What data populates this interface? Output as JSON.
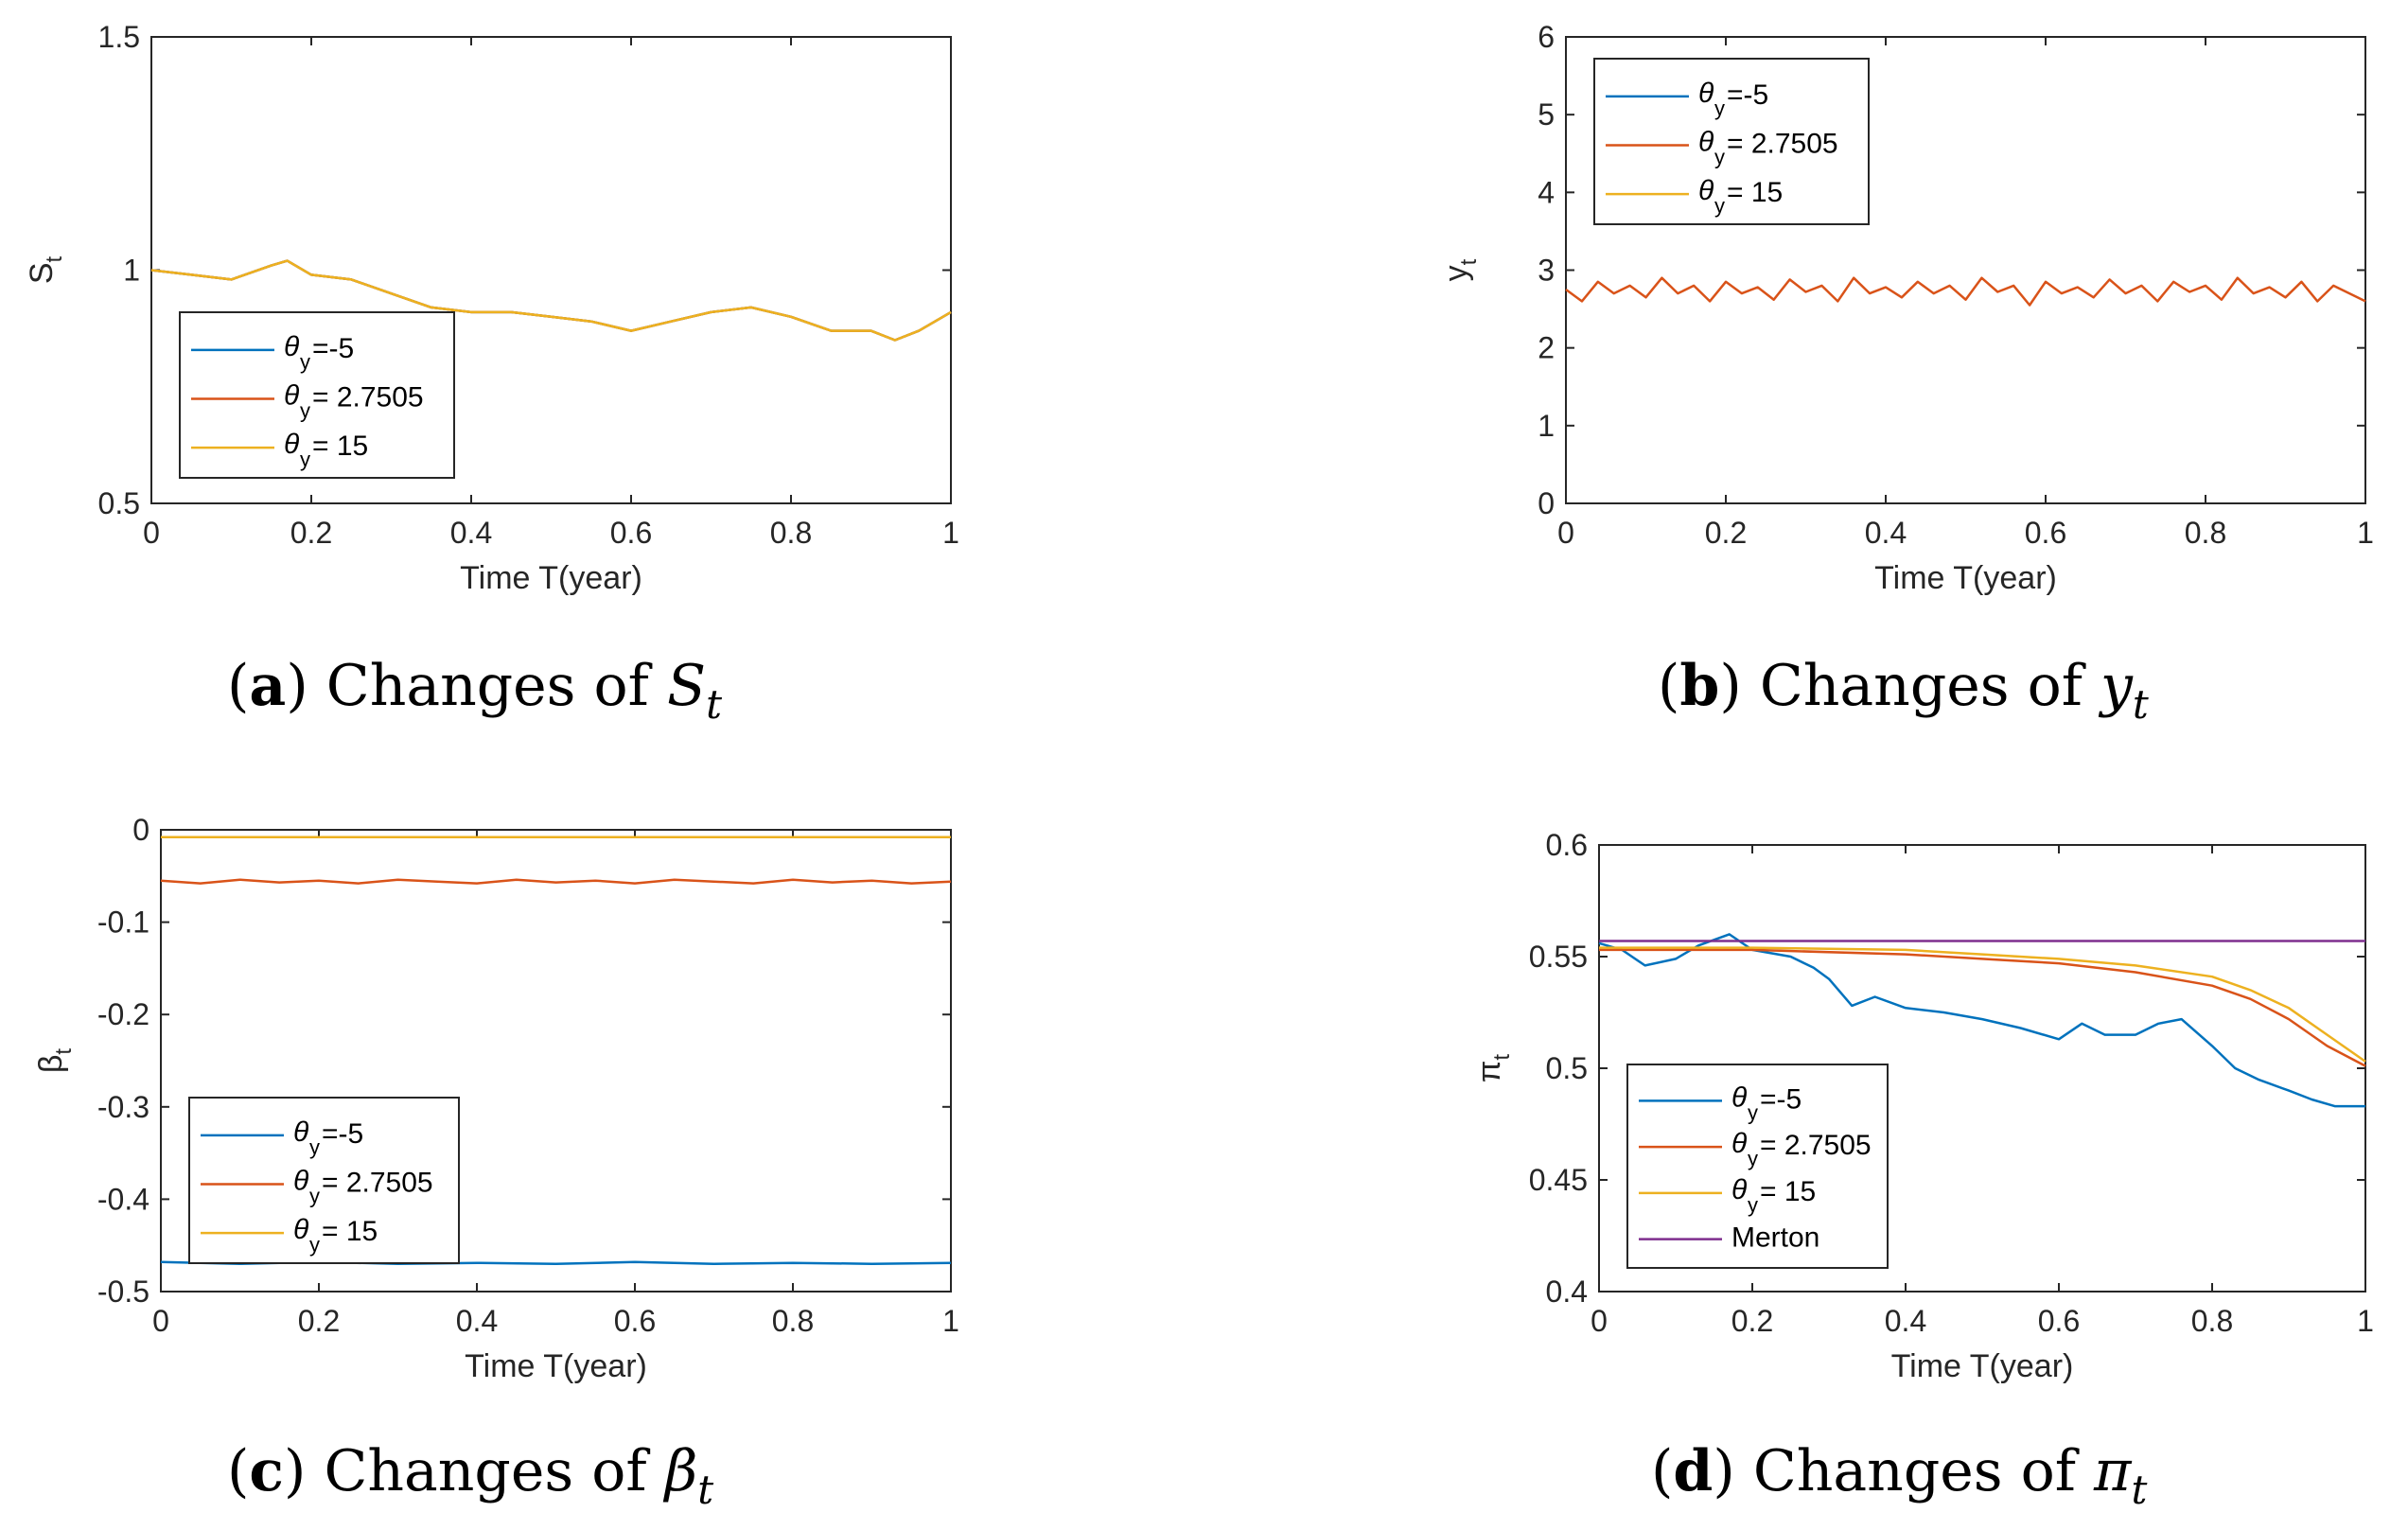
{
  "colors": {
    "blue": "#0072BD",
    "orange": "#D95319",
    "yellow": "#EDB120",
    "purple": "#7E2F8E",
    "axis": "#262626"
  },
  "chart_data": [
    {
      "id": "a",
      "type": "line",
      "xlabel": "Time T(year)",
      "ylabel": "S",
      "ylabel_sub": "t",
      "xlim": [
        0,
        1
      ],
      "ylim": [
        0.5,
        1.5
      ],
      "xticks": [
        "0",
        "0.2",
        "0.4",
        "0.6",
        "0.8",
        "1"
      ],
      "yticks": [
        "0.5",
        "1",
        "1.5"
      ],
      "caption": {
        "letter": "a",
        "text": "Changes of ",
        "symbol": "S",
        "sub": "t"
      },
      "legend": {
        "position": "lower-left",
        "entries": [
          {
            "label": "=-5",
            "color": "#0072BD"
          },
          {
            "label": "= 2.7505",
            "color": "#D95319"
          },
          {
            "label": "= 15",
            "color": "#EDB120"
          }
        ]
      },
      "series": [
        {
          "name": "θy=-5",
          "color": "#0072BD",
          "points": [
            [
              0,
              1.0
            ],
            [
              0.05,
              0.99
            ],
            [
              0.1,
              0.98
            ],
            [
              0.15,
              1.01
            ],
            [
              0.17,
              1.02
            ],
            [
              0.2,
              0.99
            ],
            [
              0.25,
              0.98
            ],
            [
              0.3,
              0.95
            ],
            [
              0.35,
              0.92
            ],
            [
              0.4,
              0.91
            ],
            [
              0.45,
              0.91
            ],
            [
              0.5,
              0.9
            ],
            [
              0.55,
              0.89
            ],
            [
              0.6,
              0.87
            ],
            [
              0.65,
              0.89
            ],
            [
              0.7,
              0.91
            ],
            [
              0.75,
              0.92
            ],
            [
              0.8,
              0.9
            ],
            [
              0.85,
              0.87
            ],
            [
              0.9,
              0.87
            ],
            [
              0.93,
              0.85
            ],
            [
              0.96,
              0.87
            ],
            [
              1.0,
              0.91
            ]
          ]
        },
        {
          "name": "θy=2.7505",
          "color": "#D95319",
          "points": [
            [
              0,
              1.0
            ],
            [
              0.05,
              0.99
            ],
            [
              0.1,
              0.98
            ],
            [
              0.15,
              1.01
            ],
            [
              0.17,
              1.02
            ],
            [
              0.2,
              0.99
            ],
            [
              0.25,
              0.98
            ],
            [
              0.3,
              0.95
            ],
            [
              0.35,
              0.92
            ],
            [
              0.4,
              0.91
            ],
            [
              0.45,
              0.91
            ],
            [
              0.5,
              0.9
            ],
            [
              0.55,
              0.89
            ],
            [
              0.6,
              0.87
            ],
            [
              0.65,
              0.89
            ],
            [
              0.7,
              0.91
            ],
            [
              0.75,
              0.92
            ],
            [
              0.8,
              0.9
            ],
            [
              0.85,
              0.87
            ],
            [
              0.9,
              0.87
            ],
            [
              0.93,
              0.85
            ],
            [
              0.96,
              0.87
            ],
            [
              1.0,
              0.91
            ]
          ]
        },
        {
          "name": "θy=15",
          "color": "#EDB120",
          "points": [
            [
              0,
              1.0
            ],
            [
              0.05,
              0.99
            ],
            [
              0.1,
              0.98
            ],
            [
              0.15,
              1.01
            ],
            [
              0.17,
              1.02
            ],
            [
              0.2,
              0.99
            ],
            [
              0.25,
              0.98
            ],
            [
              0.3,
              0.95
            ],
            [
              0.35,
              0.92
            ],
            [
              0.4,
              0.91
            ],
            [
              0.45,
              0.91
            ],
            [
              0.5,
              0.9
            ],
            [
              0.55,
              0.89
            ],
            [
              0.6,
              0.87
            ],
            [
              0.65,
              0.89
            ],
            [
              0.7,
              0.91
            ],
            [
              0.75,
              0.92
            ],
            [
              0.8,
              0.9
            ],
            [
              0.85,
              0.87
            ],
            [
              0.9,
              0.87
            ],
            [
              0.93,
              0.85
            ],
            [
              0.96,
              0.87
            ],
            [
              1.0,
              0.91
            ]
          ]
        }
      ]
    },
    {
      "id": "b",
      "type": "line",
      "xlabel": "Time T(year)",
      "ylabel": "y",
      "ylabel_sub": "t",
      "xlim": [
        0,
        1
      ],
      "ylim": [
        0,
        6
      ],
      "xticks": [
        "0",
        "0.2",
        "0.4",
        "0.6",
        "0.8",
        "1"
      ],
      "yticks": [
        "0",
        "1",
        "2",
        "3",
        "4",
        "5",
        "6"
      ],
      "caption": {
        "letter": "b",
        "text": "Changes of ",
        "symbol": "y",
        "sub": "t"
      },
      "legend": {
        "position": "top-left",
        "entries": [
          {
            "label": "=-5",
            "color": "#0072BD"
          },
          {
            "label": "= 2.7505",
            "color": "#D95319"
          },
          {
            "label": "= 15",
            "color": "#EDB120"
          }
        ]
      },
      "series": [
        {
          "name": "θy=2.7505",
          "color": "#D95319",
          "points": [
            [
              0,
              2.75
            ],
            [
              0.02,
              2.6
            ],
            [
              0.04,
              2.85
            ],
            [
              0.06,
              2.7
            ],
            [
              0.08,
              2.8
            ],
            [
              0.1,
              2.65
            ],
            [
              0.12,
              2.9
            ],
            [
              0.14,
              2.7
            ],
            [
              0.16,
              2.8
            ],
            [
              0.18,
              2.6
            ],
            [
              0.2,
              2.85
            ],
            [
              0.22,
              2.7
            ],
            [
              0.24,
              2.78
            ],
            [
              0.26,
              2.62
            ],
            [
              0.28,
              2.88
            ],
            [
              0.3,
              2.72
            ],
            [
              0.32,
              2.8
            ],
            [
              0.34,
              2.6
            ],
            [
              0.36,
              2.9
            ],
            [
              0.38,
              2.7
            ],
            [
              0.4,
              2.78
            ],
            [
              0.42,
              2.65
            ],
            [
              0.44,
              2.85
            ],
            [
              0.46,
              2.7
            ],
            [
              0.48,
              2.8
            ],
            [
              0.5,
              2.62
            ],
            [
              0.52,
              2.9
            ],
            [
              0.54,
              2.72
            ],
            [
              0.56,
              2.8
            ],
            [
              0.58,
              2.55
            ],
            [
              0.6,
              2.85
            ],
            [
              0.62,
              2.7
            ],
            [
              0.64,
              2.78
            ],
            [
              0.66,
              2.65
            ],
            [
              0.68,
              2.88
            ],
            [
              0.7,
              2.7
            ],
            [
              0.72,
              2.8
            ],
            [
              0.74,
              2.6
            ],
            [
              0.76,
              2.85
            ],
            [
              0.78,
              2.72
            ],
            [
              0.8,
              2.8
            ],
            [
              0.82,
              2.62
            ],
            [
              0.84,
              2.9
            ],
            [
              0.86,
              2.7
            ],
            [
              0.88,
              2.78
            ],
            [
              0.9,
              2.65
            ],
            [
              0.92,
              2.85
            ],
            [
              0.94,
              2.6
            ],
            [
              0.96,
              2.8
            ],
            [
              0.98,
              2.7
            ],
            [
              1.0,
              2.6
            ]
          ]
        }
      ]
    },
    {
      "id": "c",
      "type": "line",
      "xlabel": "Time T(year)",
      "ylabel": "β",
      "ylabel_sub": "t",
      "xlim": [
        0,
        1
      ],
      "ylim": [
        -0.5,
        0
      ],
      "xticks": [
        "0",
        "0.2",
        "0.4",
        "0.6",
        "0.8",
        "1"
      ],
      "yticks": [
        "-0.5",
        "-0.4",
        "-0.3",
        "-0.2",
        "-0.1",
        "0"
      ],
      "caption": {
        "letter": "c",
        "text": "Changes of ",
        "symbol": "β",
        "sub": "t"
      },
      "legend": {
        "position": "lower-left",
        "entries": [
          {
            "label": "=-5",
            "color": "#0072BD"
          },
          {
            "label": "= 2.7505",
            "color": "#D95319"
          },
          {
            "label": "= 15",
            "color": "#EDB120"
          }
        ]
      },
      "series": [
        {
          "name": "θy=-5",
          "color": "#0072BD",
          "points": [
            [
              0,
              -0.468
            ],
            [
              0.1,
              -0.47
            ],
            [
              0.2,
              -0.468
            ],
            [
              0.3,
              -0.47
            ],
            [
              0.4,
              -0.469
            ],
            [
              0.5,
              -0.47
            ],
            [
              0.6,
              -0.468
            ],
            [
              0.7,
              -0.47
            ],
            [
              0.8,
              -0.469
            ],
            [
              0.9,
              -0.47
            ],
            [
              1.0,
              -0.469
            ]
          ]
        },
        {
          "name": "θy=2.7505",
          "color": "#D95319",
          "points": [
            [
              0,
              -0.055
            ],
            [
              0.05,
              -0.058
            ],
            [
              0.1,
              -0.054
            ],
            [
              0.15,
              -0.057
            ],
            [
              0.2,
              -0.055
            ],
            [
              0.25,
              -0.058
            ],
            [
              0.3,
              -0.054
            ],
            [
              0.35,
              -0.056
            ],
            [
              0.4,
              -0.058
            ],
            [
              0.45,
              -0.054
            ],
            [
              0.5,
              -0.057
            ],
            [
              0.55,
              -0.055
            ],
            [
              0.6,
              -0.058
            ],
            [
              0.65,
              -0.054
            ],
            [
              0.7,
              -0.056
            ],
            [
              0.75,
              -0.058
            ],
            [
              0.8,
              -0.054
            ],
            [
              0.85,
              -0.057
            ],
            [
              0.9,
              -0.055
            ],
            [
              0.95,
              -0.058
            ],
            [
              1.0,
              -0.056
            ]
          ]
        },
        {
          "name": "θy=15",
          "color": "#EDB120",
          "points": [
            [
              0,
              -0.008
            ],
            [
              1.0,
              -0.008
            ]
          ]
        }
      ]
    },
    {
      "id": "d",
      "type": "line",
      "xlabel": "Time T(year)",
      "ylabel": "π",
      "ylabel_sub": "t",
      "xlim": [
        0,
        1
      ],
      "ylim": [
        0.4,
        0.6
      ],
      "xticks": [
        "0",
        "0.2",
        "0.4",
        "0.6",
        "0.8",
        "1"
      ],
      "yticks": [
        "0.4",
        "0.45",
        "0.5",
        "0.55",
        "0.6"
      ],
      "caption": {
        "letter": "d",
        "text": "Changes of ",
        "symbol": "π",
        "sub": "t"
      },
      "legend": {
        "position": "lower-left",
        "entries": [
          {
            "label": "=-5",
            "color": "#0072BD"
          },
          {
            "label": "= 2.7505",
            "color": "#D95319"
          },
          {
            "label": "= 15",
            "color": "#EDB120"
          },
          {
            "label": "Merton",
            "color": "#7E2F8E"
          }
        ]
      },
      "series": [
        {
          "name": "θy=-5",
          "color": "#0072BD",
          "points": [
            [
              0,
              0.556
            ],
            [
              0.03,
              0.553
            ],
            [
              0.06,
              0.546
            ],
            [
              0.1,
              0.549
            ],
            [
              0.13,
              0.555
            ],
            [
              0.17,
              0.56
            ],
            [
              0.2,
              0.553
            ],
            [
              0.25,
              0.55
            ],
            [
              0.28,
              0.545
            ],
            [
              0.3,
              0.54
            ],
            [
              0.33,
              0.528
            ],
            [
              0.36,
              0.532
            ],
            [
              0.4,
              0.527
            ],
            [
              0.45,
              0.525
            ],
            [
              0.5,
              0.522
            ],
            [
              0.55,
              0.518
            ],
            [
              0.6,
              0.513
            ],
            [
              0.63,
              0.52
            ],
            [
              0.66,
              0.515
            ],
            [
              0.7,
              0.515
            ],
            [
              0.73,
              0.52
            ],
            [
              0.76,
              0.522
            ],
            [
              0.8,
              0.51
            ],
            [
              0.83,
              0.5
            ],
            [
              0.86,
              0.495
            ],
            [
              0.9,
              0.49
            ],
            [
              0.93,
              0.486
            ],
            [
              0.96,
              0.483
            ],
            [
              1.0,
              0.483
            ]
          ]
        },
        {
          "name": "θy=2.7505",
          "color": "#D95319",
          "points": [
            [
              0,
              0.553
            ],
            [
              0.2,
              0.553
            ],
            [
              0.4,
              0.551
            ],
            [
              0.5,
              0.549
            ],
            [
              0.6,
              0.547
            ],
            [
              0.7,
              0.543
            ],
            [
              0.8,
              0.537
            ],
            [
              0.85,
              0.531
            ],
            [
              0.9,
              0.522
            ],
            [
              0.95,
              0.51
            ],
            [
              1.0,
              0.501
            ]
          ]
        },
        {
          "name": "θy=15",
          "color": "#EDB120",
          "points": [
            [
              0,
              0.554
            ],
            [
              0.2,
              0.554
            ],
            [
              0.4,
              0.553
            ],
            [
              0.5,
              0.551
            ],
            [
              0.6,
              0.549
            ],
            [
              0.7,
              0.546
            ],
            [
              0.8,
              0.541
            ],
            [
              0.85,
              0.535
            ],
            [
              0.9,
              0.527
            ],
            [
              0.95,
              0.515
            ],
            [
              1.0,
              0.503
            ]
          ]
        },
        {
          "name": "Merton",
          "color": "#7E2F8E",
          "points": [
            [
              0,
              0.557
            ],
            [
              1.0,
              0.557
            ]
          ]
        }
      ]
    }
  ]
}
